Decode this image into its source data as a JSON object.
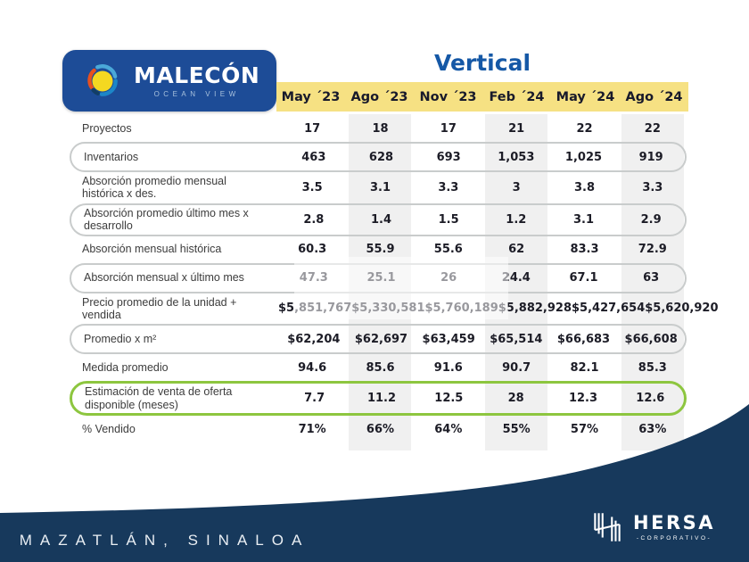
{
  "brand": {
    "name": "MALECÓN",
    "subtitle": "OCEAN VIEW"
  },
  "title": "Vertical",
  "columns": [
    "May ´23",
    "Ago ´23",
    "Nov ´23",
    "Feb ´24",
    "May ´24",
    "Ago ´24"
  ],
  "rows": [
    {
      "label": "Proyectos",
      "style": "plain",
      "values": [
        "17",
        "18",
        "17",
        "21",
        "22",
        "22"
      ]
    },
    {
      "label": "Inventarios",
      "style": "outline",
      "values": [
        "463",
        "628",
        "693",
        "1,053",
        "1,025",
        "919"
      ]
    },
    {
      "label": "Absorción promedio mensual histórica x des.",
      "style": "plain",
      "values": [
        "3.5",
        "3.1",
        "3.3",
        "3",
        "3.8",
        "3.3"
      ]
    },
    {
      "label": "Absorción promedio último mes x desarrollo",
      "style": "outline",
      "values": [
        "2.8",
        "1.4",
        "1.5",
        "1.2",
        "3.1",
        "2.9"
      ]
    },
    {
      "label": "Absorción mensual histórica",
      "style": "plain",
      "values": [
        "60.3",
        "55.9",
        "55.6",
        "62",
        "83.3",
        "72.9"
      ]
    },
    {
      "label": "Absorción mensual x último mes",
      "style": "outline",
      "values": [
        "47.3",
        "25.1",
        "26",
        "24.4",
        "67.1",
        "63"
      ]
    },
    {
      "label": "Precio promedio de la unidad + vendida",
      "style": "plain",
      "values": [
        "$5,851,767",
        "$5,330,581",
        "$5,760,189",
        "$5,882,928",
        "$5,427,654",
        "$5,620,920"
      ]
    },
    {
      "label": "Promedio x m²",
      "style": "outline",
      "values": [
        "$62,204",
        "$62,697",
        "$63,459",
        "$65,514",
        "$66,683",
        "$66,608"
      ]
    },
    {
      "label": "Medida promedio",
      "style": "plain",
      "values": [
        "94.6",
        "85.6",
        "91.6",
        "90.7",
        "82.1",
        "85.3"
      ]
    },
    {
      "label": "Estimación de venta de oferta disponible (meses)",
      "style": "highlight",
      "values": [
        "7.7",
        "11.2",
        "12.5",
        "28",
        "12.3",
        "12.6"
      ]
    },
    {
      "label": "% Vendido",
      "style": "plain",
      "values": [
        "71%",
        "66%",
        "64%",
        "55%",
        "57%",
        "63%"
      ]
    }
  ],
  "footer": {
    "location": "Y MAZATLÁN, SINALOA",
    "hersa_name": "HERSA",
    "hersa_subtitle": "-CORPORATIVO-"
  },
  "colors": {
    "navy": "#17395c",
    "royal_blue": "#1d4c97",
    "title_blue": "#1558a6",
    "band_yellow": "#f6e183",
    "stripe_gray": "#f0f0f0",
    "highlight_green": "#8dc63f",
    "outline_gray": "#c9cccc"
  }
}
